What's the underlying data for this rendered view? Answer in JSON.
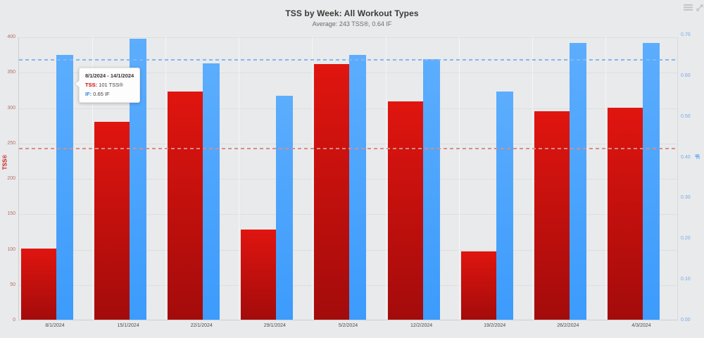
{
  "header": {
    "title": "TSS by Week: All Workout Types",
    "subtitle": "Average: 243 TSS®, 0.64 IF"
  },
  "tooltip": {
    "date_range": "8/1/2024 - 14/1/2024",
    "tss_label": "TSS:",
    "tss_value": "101 TSS®",
    "if_label": "IF:",
    "if_value": "0.65 IF"
  },
  "chart_data": {
    "type": "bar",
    "title": "TSS by Week: All Workout Types",
    "subtitle": "Average: 243 TSS®, 0.64 IF",
    "categories": [
      "8/1/2024",
      "15/1/2024",
      "22/1/2024",
      "29/1/2024",
      "5/2/2024",
      "12/2/2024",
      "19/2/2024",
      "26/2/2024",
      "4/3/2024"
    ],
    "series": [
      {
        "name": "TSS",
        "axis": "left",
        "color_top": "#e0150f",
        "color_bottom": "#a30b0b",
        "values": [
          101,
          280,
          322,
          127,
          361,
          308,
          97,
          295,
          300
        ]
      },
      {
        "name": "IF",
        "axis": "right",
        "color_top": "#5cadfd",
        "color_bottom": "#3c9bfc",
        "values": [
          0.65,
          0.69,
          0.63,
          0.55,
          0.65,
          0.64,
          0.56,
          0.68,
          0.68
        ]
      }
    ],
    "left_axis": {
      "title": "TSS®",
      "min": 0,
      "max": 400,
      "ticks": [
        0,
        50,
        100,
        150,
        200,
        250,
        300,
        350,
        400
      ],
      "tick_color": "#b46f6a",
      "title_color": "#c42020"
    },
    "right_axis": {
      "title": "IF",
      "min": 0,
      "max": 0.7,
      "ticks": [
        0,
        0.1,
        0.2,
        0.3,
        0.4,
        0.5,
        0.6,
        0.7
      ],
      "tick_color": "#74aaec",
      "title_color": "#4a9ff9"
    },
    "average_lines": [
      {
        "series": "TSS",
        "value": 243,
        "color": "#d58e8b"
      },
      {
        "series": "IF",
        "value": 0.64,
        "color": "#84b6f6"
      }
    ],
    "grid": true,
    "legend_position": "none"
  },
  "colors": {
    "background": "#e9eaeb",
    "hgrid": "#dcdee0",
    "vgrid": "#f5f6f7",
    "icon": "#c3c5c8"
  }
}
